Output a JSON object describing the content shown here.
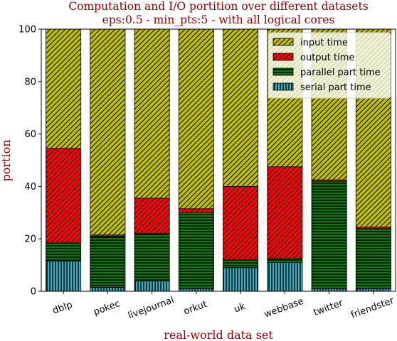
{
  "chart_data": {
    "type": "bar",
    "stacked": true,
    "title_line1": "Computation and I/O portition over different datasets",
    "title_line2": "eps:0.5 - min_pts:5 - with all logical cores",
    "xlabel": "real-world data set",
    "ylabel": "portion",
    "ylim": [
      0,
      100
    ],
    "yticks": [
      "0",
      "20",
      "40",
      "60",
      "80",
      "100"
    ],
    "categories": [
      "dblp",
      "pokec",
      "livejournal",
      "orkut",
      "uk",
      "webbase",
      "twitter",
      "friendster"
    ],
    "series": [
      {
        "name": "serial part time",
        "color": "#17becf",
        "hatch": "vertical",
        "values": [
          11.5,
          1.5,
          4.0,
          1.0,
          9.0,
          11.0,
          1.0,
          1.0
        ]
      },
      {
        "name": "parallel part time",
        "color": "#007f00",
        "hatch": "horizontal",
        "values": [
          7.0,
          19.5,
          18.0,
          29.0,
          3.0,
          1.5,
          41.0,
          23.0
        ]
      },
      {
        "name": "output time",
        "color": "#ff0000",
        "hatch": "diagonal",
        "values": [
          36.0,
          0.5,
          13.5,
          1.5,
          28.0,
          35.0,
          0.5,
          0.5
        ]
      },
      {
        "name": "input time",
        "color": "#bfbf00",
        "hatch": "diagonal",
        "values": [
          45.5,
          78.5,
          64.5,
          68.5,
          60.0,
          52.5,
          57.5,
          75.5
        ]
      }
    ],
    "legend_order": [
      "input time",
      "output time",
      "parallel part time",
      "serial part time"
    ],
    "legend_position": "top-right",
    "grid": false
  }
}
